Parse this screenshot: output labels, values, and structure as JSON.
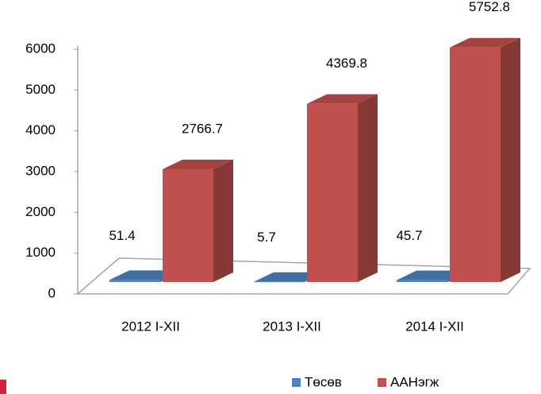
{
  "chart_data": {
    "type": "bar3d",
    "categories": [
      "2012 I-XII",
      "2013 I-XII",
      "2014 I-XII"
    ],
    "series": [
      {
        "name": "Төсөв",
        "color": "#4f81bd",
        "values": [
          51.4,
          5.7,
          45.7
        ]
      },
      {
        "name": "ААНэгж",
        "color": "#c0504d",
        "values": [
          2766.7,
          4369.8,
          5752.8
        ]
      }
    ],
    "ylim": [
      0,
      6000
    ],
    "yticks": [
      0,
      1000,
      2000,
      3000,
      4000,
      5000,
      6000
    ],
    "grid": false,
    "legend": "bottom"
  }
}
